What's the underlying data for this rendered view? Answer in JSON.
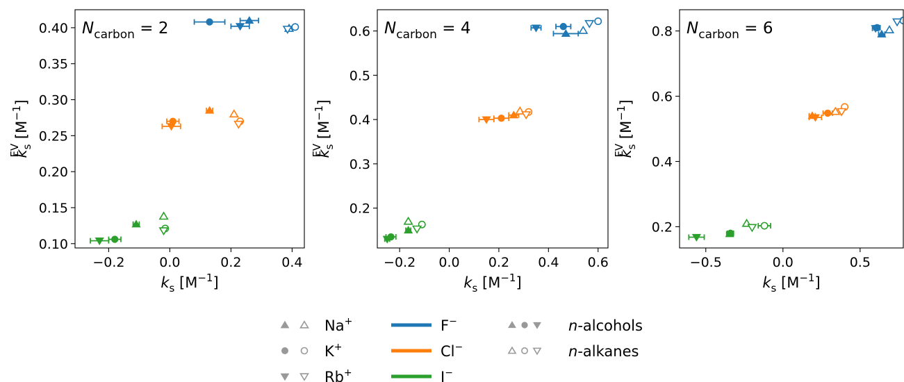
{
  "chart_data": [
    {
      "type": "scatter",
      "annotation": {
        "sym": "N",
        "sub": "carbon",
        "rest": " = 2"
      },
      "xlabel": {
        "sym": "k",
        "sub": "s",
        "unit": " [M",
        "exp": "−1",
        "close": "]"
      },
      "ylabel": {
        "sym": "k",
        "sub": "s",
        "sup": "EV",
        "unit": " [M",
        "exp": "−1",
        "close": "]"
      },
      "xlim": [
        -0.31,
        0.44
      ],
      "ylim": [
        0.094,
        0.425
      ],
      "xticks": [
        -0.2,
        0.0,
        0.2,
        0.4
      ],
      "xtick_labels": [
        "−0.2",
        "0.0",
        "0.2",
        "0.4"
      ],
      "yticks": [
        0.1,
        0.15,
        0.2,
        0.25,
        0.3,
        0.35,
        0.4
      ],
      "ytick_labels": [
        "0.10",
        "0.15",
        "0.20",
        "0.25",
        "0.30",
        "0.35",
        "0.40"
      ],
      "points": [
        {
          "anion": "F-",
          "cation": "K+",
          "type": "alcohol",
          "x": 0.13,
          "y": 0.408,
          "xerr": 0.05
        },
        {
          "anion": "F-",
          "cation": "Na+",
          "type": "alcohol",
          "x": 0.26,
          "y": 0.41,
          "xerr": 0.03
        },
        {
          "anion": "F-",
          "cation": "Rb+",
          "type": "alcohol",
          "x": 0.23,
          "y": 0.402,
          "xerr": 0.03
        },
        {
          "anion": "F-",
          "cation": "Na+",
          "type": "alkane",
          "x": 0.39,
          "y": 0.399
        },
        {
          "anion": "F-",
          "cation": "K+",
          "type": "alkane",
          "x": 0.41,
          "y": 0.401
        },
        {
          "anion": "F-",
          "cation": "Rb+",
          "type": "alkane",
          "x": 0.385,
          "y": 0.398
        },
        {
          "anion": "Cl-",
          "cation": "K+",
          "type": "alcohol",
          "x": 0.01,
          "y": 0.27,
          "xerr": 0.02
        },
        {
          "anion": "Cl-",
          "cation": "Rb+",
          "type": "alcohol",
          "x": 0.005,
          "y": 0.263,
          "xerr": 0.03
        },
        {
          "anion": "Cl-",
          "cation": "Na+",
          "type": "alcohol",
          "x": 0.13,
          "y": 0.285,
          "xerr": 0.01
        },
        {
          "anion": "Cl-",
          "cation": "Na+",
          "type": "alkane",
          "x": 0.21,
          "y": 0.28
        },
        {
          "anion": "Cl-",
          "cation": "K+",
          "type": "alkane",
          "x": 0.23,
          "y": 0.27
        },
        {
          "anion": "Cl-",
          "cation": "Rb+",
          "type": "alkane",
          "x": 0.225,
          "y": 0.266
        },
        {
          "anion": "I-",
          "cation": "K+",
          "type": "alcohol",
          "x": -0.18,
          "y": 0.106,
          "xerr": 0.02
        },
        {
          "anion": "I-",
          "cation": "Rb+",
          "type": "alcohol",
          "x": -0.23,
          "y": 0.104,
          "xerr": 0.03
        },
        {
          "anion": "I-",
          "cation": "Na+",
          "type": "alcohol",
          "x": -0.11,
          "y": 0.127,
          "xerr": 0.01
        },
        {
          "anion": "I-",
          "cation": "Na+",
          "type": "alkane",
          "x": -0.02,
          "y": 0.138
        },
        {
          "anion": "I-",
          "cation": "K+",
          "type": "alkane",
          "x": -0.015,
          "y": 0.121
        },
        {
          "anion": "I-",
          "cation": "Rb+",
          "type": "alkane",
          "x": -0.02,
          "y": 0.118
        }
      ]
    },
    {
      "type": "scatter",
      "annotation": {
        "sym": "N",
        "sub": "carbon",
        "rest": " = 4"
      },
      "xlabel": {
        "sym": "k",
        "sub": "s",
        "unit": " [M",
        "exp": "−1",
        "close": "]"
      },
      "ylabel": {
        "sym": "k",
        "sub": "s",
        "sup": "EV",
        "unit": " [M",
        "exp": "−1",
        "close": "]"
      },
      "xlim": [
        -0.29,
        0.64
      ],
      "ylim": [
        0.11,
        0.648
      ],
      "xticks": [
        -0.2,
        0.0,
        0.2,
        0.4,
        0.6
      ],
      "xtick_labels": [
        "−0.2",
        "0.0",
        "0.2",
        "0.4",
        "0.6"
      ],
      "yticks": [
        0.2,
        0.3,
        0.4,
        0.5,
        0.6
      ],
      "ytick_labels": [
        "0.2",
        "0.3",
        "0.4",
        "0.5",
        "0.6"
      ],
      "points": [
        {
          "anion": "F-",
          "cation": "K+",
          "type": "alcohol",
          "x": 0.46,
          "y": 0.61,
          "xerr": 0.03
        },
        {
          "anion": "F-",
          "cation": "Na+",
          "type": "alcohol",
          "x": 0.47,
          "y": 0.594,
          "xerr": 0.05
        },
        {
          "anion": "F-",
          "cation": "Rb+",
          "type": "alcohol",
          "x": 0.35,
          "y": 0.607,
          "xerr": 0.02
        },
        {
          "anion": "F-",
          "cation": "Na+",
          "type": "alkane",
          "x": 0.54,
          "y": 0.601
        },
        {
          "anion": "F-",
          "cation": "K+",
          "type": "alkane",
          "x": 0.6,
          "y": 0.622
        },
        {
          "anion": "F-",
          "cation": "Rb+",
          "type": "alkane",
          "x": 0.565,
          "y": 0.617
        },
        {
          "anion": "Cl-",
          "cation": "K+",
          "type": "alcohol",
          "x": 0.21,
          "y": 0.403,
          "xerr": 0.03
        },
        {
          "anion": "Cl-",
          "cation": "Rb+",
          "type": "alcohol",
          "x": 0.15,
          "y": 0.4,
          "xerr": 0.03
        },
        {
          "anion": "Cl-",
          "cation": "Na+",
          "type": "alcohol",
          "x": 0.26,
          "y": 0.41,
          "xerr": 0.02
        },
        {
          "anion": "Cl-",
          "cation": "Na+",
          "type": "alkane",
          "x": 0.285,
          "y": 0.419
        },
        {
          "anion": "Cl-",
          "cation": "K+",
          "type": "alkane",
          "x": 0.32,
          "y": 0.417
        },
        {
          "anion": "Cl-",
          "cation": "Rb+",
          "type": "alkane",
          "x": 0.31,
          "y": 0.411
        },
        {
          "anion": "I-",
          "cation": "K+",
          "type": "alcohol",
          "x": -0.235,
          "y": 0.135,
          "xerr": 0.02
        },
        {
          "anion": "I-",
          "cation": "Rb+",
          "type": "alcohol",
          "x": -0.25,
          "y": 0.13,
          "xerr": 0.01
        },
        {
          "anion": "I-",
          "cation": "Na+",
          "type": "alcohol",
          "x": -0.165,
          "y": 0.15,
          "xerr": 0.01
        },
        {
          "anion": "I-",
          "cation": "Na+",
          "type": "alkane",
          "x": -0.165,
          "y": 0.17
        },
        {
          "anion": "I-",
          "cation": "K+",
          "type": "alkane",
          "x": -0.11,
          "y": 0.163
        },
        {
          "anion": "I-",
          "cation": "Rb+",
          "type": "alkane",
          "x": -0.13,
          "y": 0.153
        }
      ]
    },
    {
      "type": "scatter",
      "annotation": {
        "sym": "N",
        "sub": "carbon",
        "rest": " = 6"
      },
      "xlabel": {
        "sym": "k",
        "sub": "s",
        "unit": " [M",
        "exp": "−1",
        "close": "]"
      },
      "ylabel": {
        "sym": "k",
        "sub": "s",
        "sup": "EV",
        "unit": " [M",
        "exp": "−1",
        "close": "]"
      },
      "xlim": [
        -0.67,
        0.78
      ],
      "ylim": [
        0.135,
        0.865
      ],
      "xticks": [
        -0.5,
        0.0,
        0.5
      ],
      "xtick_labels": [
        "−0.5",
        "0.0",
        "0.5"
      ],
      "yticks": [
        0.2,
        0.4,
        0.6,
        0.8
      ],
      "ytick_labels": [
        "0.2",
        "0.4",
        "0.6",
        "0.8"
      ],
      "points": [
        {
          "anion": "F-",
          "cation": "K+",
          "type": "alcohol",
          "x": 0.61,
          "y": 0.81,
          "xerr": 0.02
        },
        {
          "anion": "F-",
          "cation": "Na+",
          "type": "alcohol",
          "x": 0.64,
          "y": 0.79,
          "xerr": 0.02
        },
        {
          "anion": "F-",
          "cation": "Rb+",
          "type": "alcohol",
          "x": 0.6,
          "y": 0.808,
          "xerr": 0.02
        },
        {
          "anion": "F-",
          "cation": "Na+",
          "type": "alkane",
          "x": 0.69,
          "y": 0.803
        },
        {
          "anion": "F-",
          "cation": "K+",
          "type": "alkane",
          "x": 0.78,
          "y": 0.832
        },
        {
          "anion": "F-",
          "cation": "Rb+",
          "type": "alkane",
          "x": 0.74,
          "y": 0.828
        },
        {
          "anion": "Cl-",
          "cation": "K+",
          "type": "alcohol",
          "x": 0.29,
          "y": 0.548,
          "xerr": 0.03
        },
        {
          "anion": "Cl-",
          "cation": "Rb+",
          "type": "alcohol",
          "x": 0.21,
          "y": 0.535,
          "xerr": 0.04
        },
        {
          "anion": "Cl-",
          "cation": "Na+",
          "type": "alcohol",
          "x": 0.19,
          "y": 0.54,
          "xerr": 0.02
        },
        {
          "anion": "Cl-",
          "cation": "Na+",
          "type": "alkane",
          "x": 0.34,
          "y": 0.553
        },
        {
          "anion": "Cl-",
          "cation": "K+",
          "type": "alkane",
          "x": 0.4,
          "y": 0.567
        },
        {
          "anion": "Cl-",
          "cation": "Rb+",
          "type": "alkane",
          "x": 0.38,
          "y": 0.553
        },
        {
          "anion": "I-",
          "cation": "K+",
          "type": "alcohol",
          "x": -0.34,
          "y": 0.18,
          "xerr": 0.02
        },
        {
          "anion": "I-",
          "cation": "Rb+",
          "type": "alcohol",
          "x": -0.56,
          "y": 0.168,
          "xerr": 0.05
        },
        {
          "anion": "I-",
          "cation": "Na+",
          "type": "alcohol",
          "x": -0.345,
          "y": 0.178,
          "xerr": 0.02
        },
        {
          "anion": "I-",
          "cation": "Na+",
          "type": "alkane",
          "x": -0.235,
          "y": 0.21
        },
        {
          "anion": "I-",
          "cation": "K+",
          "type": "alkane",
          "x": -0.12,
          "y": 0.203,
          "xerr": 0.04
        },
        {
          "anion": "I-",
          "cation": "Rb+",
          "type": "alkane",
          "x": -0.2,
          "y": 0.198
        }
      ]
    }
  ],
  "legend": {
    "placement": "bottom-center",
    "cations": [
      {
        "base": "Na",
        "sup": "+",
        "marker": "triangle-up"
      },
      {
        "base": "K",
        "sup": "+",
        "marker": "circle"
      },
      {
        "base": "Rb",
        "sup": "+",
        "marker": "triangle-down"
      }
    ],
    "anions": [
      {
        "base": "F",
        "sup": "−",
        "key": "F-"
      },
      {
        "base": "Cl",
        "sup": "−",
        "key": "Cl-"
      },
      {
        "base": "I",
        "sup": "−",
        "key": "I-"
      }
    ],
    "types": [
      {
        "prefix": "n",
        "rest": "-alcohols",
        "filled": true
      },
      {
        "prefix": "n",
        "rest": "-alkanes",
        "filled": false
      }
    ]
  },
  "colors": {
    "F-": "#1f77b4",
    "Cl-": "#ff7f0e",
    "I-": "#2ca02c",
    "legend_marker": "#999999"
  }
}
